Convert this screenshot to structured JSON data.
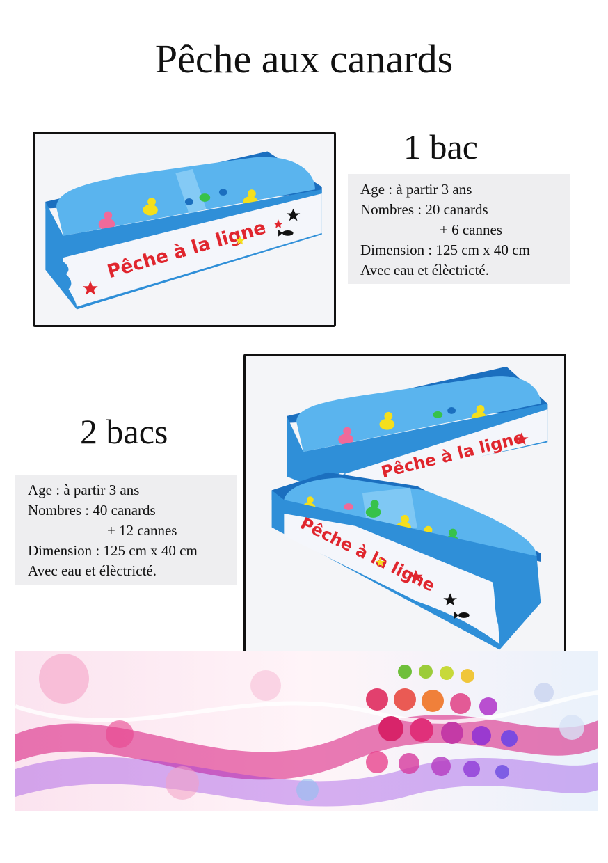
{
  "page": {
    "title": "Pêche aux canards"
  },
  "single": {
    "heading": "1 bac",
    "age": "Age : à partir 3 ans",
    "count": "Nombres : 20 canards",
    "rods": "+ 6 cannes",
    "dimension": "Dimension : 125 cm x 40 cm",
    "extras": "Avec eau et élèctricté.",
    "banner_text": "Pêche à la ligne"
  },
  "double": {
    "heading": "2 bacs",
    "age": "Age : à partir 3 ans",
    "count": "Nombres : 40 canards",
    "rods": "+ 12 cannes",
    "dimension": "Dimension : 125 cm x 40 cm",
    "extras": "Avec eau et élèctricté.",
    "banner_text": "Pêche à la ligne"
  },
  "colors": {
    "tank_blue": "#2f8fd8",
    "tank_dark": "#1b6fbf",
    "water": "#5ab4ee",
    "banner": "#f4f6fb",
    "banner_text": "#e0262e",
    "duck_yellow": "#f4df1c",
    "duck_pink": "#f06a9a",
    "duck_green": "#37c24a"
  },
  "icons": [
    "duck-icon",
    "star-icon",
    "fish-icon"
  ]
}
